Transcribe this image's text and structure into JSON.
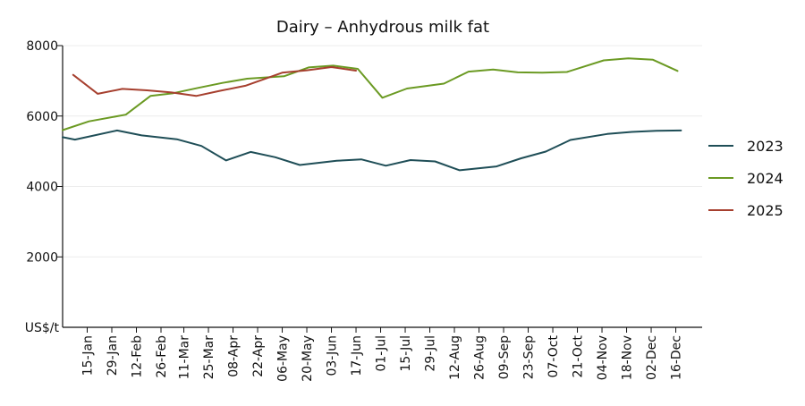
{
  "chart_data": {
    "type": "line",
    "title": "Dairy – Anhydrous milk fat",
    "y_unit_label": "US$/t",
    "ylim": [
      0,
      8000
    ],
    "yticks": [
      2000,
      4000,
      6000,
      8000
    ],
    "grid": true,
    "legend_position": "right",
    "categories": [
      "15-Jan",
      "29-Jan",
      "12-Feb",
      "26-Feb",
      "11-Mar",
      "25-Mar",
      "08-Apr",
      "22-Apr",
      "06-May",
      "20-May",
      "03-Jun",
      "17-Jun",
      "01-Jul",
      "15-Jul",
      "29-Jul",
      "12-Aug",
      "26-Aug",
      "09-Sep",
      "23-Sep",
      "07-Oct",
      "21-Oct",
      "04-Nov",
      "18-Nov",
      "02-Dec",
      "16-Dec"
    ],
    "series": [
      {
        "name": "2023",
        "color": "#1f4e57",
        "points": [
          {
            "x": "01-Jan",
            "y": 5400
          },
          {
            "x": "08-Jan",
            "y": 5330
          },
          {
            "x": "01-Feb",
            "y": 5590
          },
          {
            "x": "15-Feb",
            "y": 5450
          },
          {
            "x": "07-Mar",
            "y": 5340
          },
          {
            "x": "21-Mar",
            "y": 5150
          },
          {
            "x": "04-Apr",
            "y": 4740
          },
          {
            "x": "18-Apr",
            "y": 4980
          },
          {
            "x": "02-May",
            "y": 4830
          },
          {
            "x": "16-May",
            "y": 4610
          },
          {
            "x": "06-Jun",
            "y": 4730
          },
          {
            "x": "20-Jun",
            "y": 4770
          },
          {
            "x": "04-Jul",
            "y": 4590
          },
          {
            "x": "18-Jul",
            "y": 4750
          },
          {
            "x": "01-Aug",
            "y": 4710
          },
          {
            "x": "15-Aug",
            "y": 4460
          },
          {
            "x": "05-Sep",
            "y": 4570
          },
          {
            "x": "19-Sep",
            "y": 4800
          },
          {
            "x": "03-Oct",
            "y": 4990
          },
          {
            "x": "17-Oct",
            "y": 5320
          },
          {
            "x": "07-Nov",
            "y": 5490
          },
          {
            "x": "21-Nov",
            "y": 5550
          },
          {
            "x": "05-Dec",
            "y": 5580
          },
          {
            "x": "19-Dec",
            "y": 5590
          }
        ]
      },
      {
        "name": "2024",
        "color": "#6b9a23",
        "points": [
          {
            "x": "01-Jan",
            "y": 5600
          },
          {
            "x": "16-Jan",
            "y": 5850
          },
          {
            "x": "06-Feb",
            "y": 6040
          },
          {
            "x": "20-Feb",
            "y": 6570
          },
          {
            "x": "05-Mar",
            "y": 6650
          },
          {
            "x": "19-Mar",
            "y": 6800
          },
          {
            "x": "02-Apr",
            "y": 6940
          },
          {
            "x": "16-Apr",
            "y": 7060
          },
          {
            "x": "07-May",
            "y": 7130
          },
          {
            "x": "21-May",
            "y": 7380
          },
          {
            "x": "04-Jun",
            "y": 7430
          },
          {
            "x": "18-Jun",
            "y": 7340
          },
          {
            "x": "02-Jul",
            "y": 6520
          },
          {
            "x": "16-Jul",
            "y": 6780
          },
          {
            "x": "06-Aug",
            "y": 6920
          },
          {
            "x": "20-Aug",
            "y": 7260
          },
          {
            "x": "03-Sep",
            "y": 7320
          },
          {
            "x": "17-Sep",
            "y": 7240
          },
          {
            "x": "01-Oct",
            "y": 7230
          },
          {
            "x": "15-Oct",
            "y": 7250
          },
          {
            "x": "05-Nov",
            "y": 7580
          },
          {
            "x": "19-Nov",
            "y": 7640
          },
          {
            "x": "03-Dec",
            "y": 7600
          },
          {
            "x": "17-Dec",
            "y": 7280
          }
        ]
      },
      {
        "name": "2025",
        "color": "#a63f2e",
        "points": [
          {
            "x": "07-Jan",
            "y": 7170
          },
          {
            "x": "21-Jan",
            "y": 6630
          },
          {
            "x": "04-Feb",
            "y": 6770
          },
          {
            "x": "18-Feb",
            "y": 6730
          },
          {
            "x": "04-Mar",
            "y": 6670
          },
          {
            "x": "18-Mar",
            "y": 6570
          },
          {
            "x": "01-Apr",
            "y": 6720
          },
          {
            "x": "15-Apr",
            "y": 6860
          },
          {
            "x": "06-May",
            "y": 7230
          },
          {
            "x": "20-May",
            "y": 7300
          },
          {
            "x": "03-Jun",
            "y": 7390
          },
          {
            "x": "17-Jun",
            "y": 7290
          }
        ]
      }
    ]
  }
}
